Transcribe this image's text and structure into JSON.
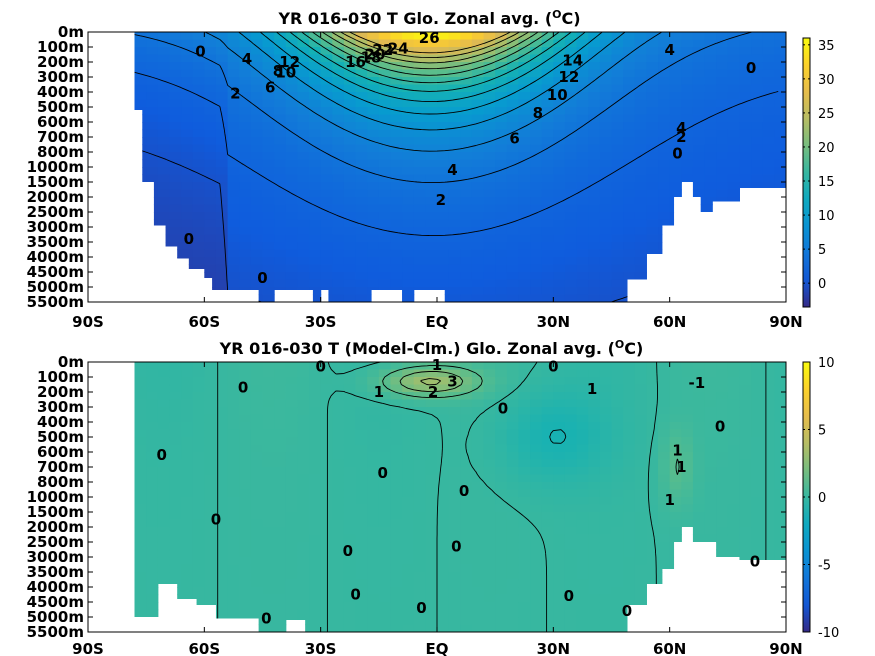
{
  "chart_data": [
    {
      "type": "heatmap",
      "title": "YR 016-030 T Glo. Zonal avg. (",
      "title_sup": "O",
      "title_end": "C)",
      "x_ticks": [
        "90S",
        "60S",
        "30S",
        "EQ",
        "30N",
        "60N",
        "90N"
      ],
      "x_values": [
        -90,
        -60,
        -30,
        0,
        30,
        60,
        90
      ],
      "y_ticks": [
        "0m",
        "100m",
        "200m",
        "300m",
        "400m",
        "500m",
        "600m",
        "700m",
        "800m",
        "1000m",
        "1500m",
        "2000m",
        "2500m",
        "3000m",
        "3500m",
        "4000m",
        "4500m",
        "5000m",
        "5500m"
      ],
      "colorbar_ticks": [
        "35",
        "30",
        "25",
        "20",
        "15",
        "10",
        "5",
        "0"
      ],
      "colorbar_values": [
        35,
        30,
        25,
        20,
        15,
        10,
        5,
        0
      ],
      "clim": [
        -3.5,
        36
      ],
      "colormap": "parula",
      "contour_labels": [
        {
          "text": "26",
          "lat": -2,
          "level": 0.4
        },
        {
          "text": "24",
          "lat": -10,
          "level": 1.1
        },
        {
          "text": "22",
          "lat": -14,
          "level": 1.2
        },
        {
          "text": "20",
          "lat": -16,
          "level": 1.5
        },
        {
          "text": "18",
          "lat": -17,
          "level": 1.7
        },
        {
          "text": "16",
          "lat": -21,
          "level": 2.0
        },
        {
          "text": "14",
          "lat": 35,
          "level": 1.9
        },
        {
          "text": "12",
          "lat": 34,
          "level": 3.0
        },
        {
          "text": "12",
          "lat": -38,
          "level": 2.0
        },
        {
          "text": "10",
          "lat": 31,
          "level": 4.2
        },
        {
          "text": "10",
          "lat": -39,
          "level": 2.7
        },
        {
          "text": "8",
          "lat": -41,
          "level": 2.6
        },
        {
          "text": "8",
          "lat": 26,
          "level": 5.4
        },
        {
          "text": "6",
          "lat": -43,
          "level": 3.7
        },
        {
          "text": "6",
          "lat": 20,
          "level": 7.1
        },
        {
          "text": "4",
          "lat": -49,
          "level": 1.8
        },
        {
          "text": "4",
          "lat": 4,
          "level": 9.2
        },
        {
          "text": "4",
          "lat": 60,
          "level": 1.2
        },
        {
          "text": "4",
          "lat": 63,
          "level": 6.4
        },
        {
          "text": "2",
          "lat": -52,
          "level": 4.1
        },
        {
          "text": "2",
          "lat": 1,
          "level": 11.2
        },
        {
          "text": "2",
          "lat": 63,
          "level": 7.0
        },
        {
          "text": "0",
          "lat": -61,
          "level": 1.3
        },
        {
          "text": "0",
          "lat": -64,
          "level": 13.8
        },
        {
          "text": "0",
          "lat": -45,
          "level": 16.4
        },
        {
          "text": "0",
          "lat": 62,
          "level": 8.1
        },
        {
          "text": "0",
          "lat": 81,
          "level": 2.4
        }
      ]
    },
    {
      "type": "heatmap",
      "title": "YR 016-030 T (Model-Clm.) Glo. Zonal avg. (",
      "title_sup": "O",
      "title_end": "C)",
      "x_ticks": [
        "90S",
        "60S",
        "30S",
        "EQ",
        "30N",
        "60N",
        "90N"
      ],
      "x_values": [
        -90,
        -60,
        -30,
        0,
        30,
        60,
        90
      ],
      "y_ticks": [
        "0m",
        "100m",
        "200m",
        "300m",
        "400m",
        "500m",
        "600m",
        "700m",
        "800m",
        "1000m",
        "1500m",
        "2000m",
        "2500m",
        "3000m",
        "3500m",
        "4000m",
        "4500m",
        "5000m",
        "5500m"
      ],
      "colorbar_ticks": [
        "10",
        "5",
        "0",
        "-5",
        "-10"
      ],
      "colorbar_values": [
        10,
        5,
        0,
        -5,
        -10
      ],
      "clim": [
        -10,
        10
      ],
      "colormap": "parula",
      "contour_labels": [
        {
          "text": "1",
          "lat": 0,
          "level": 0.2
        },
        {
          "text": "0",
          "lat": -30,
          "level": 0.3
        },
        {
          "text": "0",
          "lat": 30,
          "level": 0.3
        },
        {
          "text": "3",
          "lat": 4,
          "level": 1.3
        },
        {
          "text": "2",
          "lat": -1,
          "level": 2.0
        },
        {
          "text": "1",
          "lat": -15,
          "level": 2.0
        },
        {
          "text": "1",
          "lat": 40,
          "level": 1.8
        },
        {
          "text": "-1",
          "lat": 67,
          "level": 1.4
        },
        {
          "text": "0",
          "lat": -50,
          "level": 1.7
        },
        {
          "text": "0",
          "lat": 17,
          "level": 3.1
        },
        {
          "text": "0",
          "lat": 73,
          "level": 4.3
        },
        {
          "text": "0",
          "lat": -71,
          "level": 6.2
        },
        {
          "text": "1",
          "lat": 62,
          "level": 5.9
        },
        {
          "text": "1",
          "lat": 63,
          "level": 7.0
        },
        {
          "text": "0",
          "lat": -14,
          "level": 7.4
        },
        {
          "text": "0",
          "lat": 7,
          "level": 8.6
        },
        {
          "text": "1",
          "lat": 60,
          "level": 9.2
        },
        {
          "text": "0",
          "lat": -57,
          "level": 10.5
        },
        {
          "text": "0",
          "lat": -23,
          "level": 12.6
        },
        {
          "text": "0",
          "lat": 5,
          "level": 12.3
        },
        {
          "text": "0",
          "lat": 82,
          "level": 13.3
        },
        {
          "text": "0",
          "lat": -21,
          "level": 15.5
        },
        {
          "text": "0",
          "lat": -4,
          "level": 16.4
        },
        {
          "text": "0",
          "lat": 34,
          "level": 15.6
        },
        {
          "text": "0",
          "lat": 49,
          "level": 16.6
        },
        {
          "text": "0",
          "lat": -44,
          "level": 17.1
        }
      ]
    }
  ]
}
